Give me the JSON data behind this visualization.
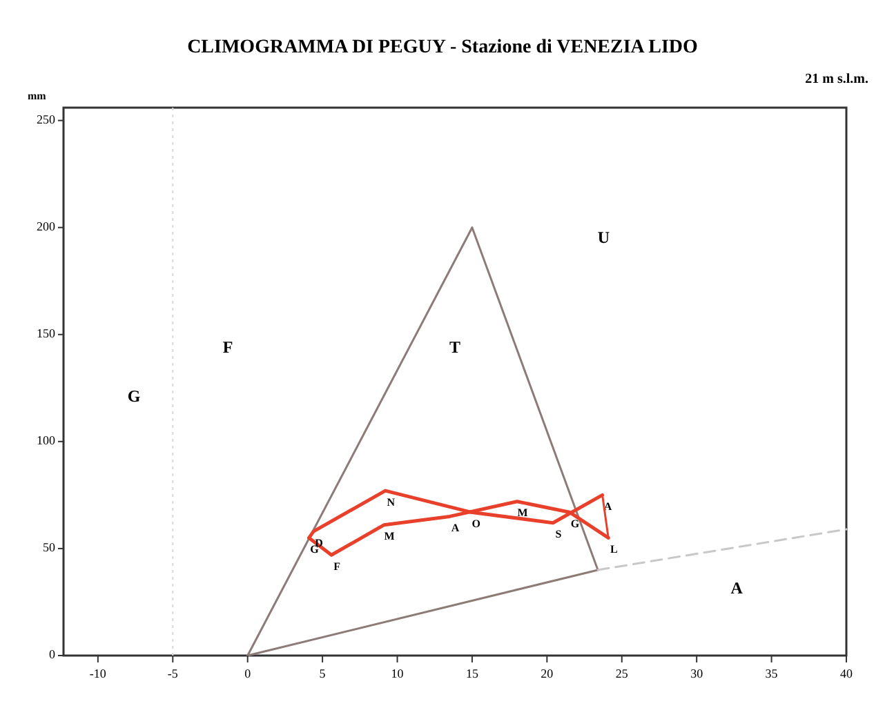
{
  "chart_data": {
    "type": "line",
    "title": "CLIMOGRAMMA DI PEGUY - Stazione di VENEZIA LIDO",
    "subtitle": "21 m s.l.m.",
    "ylabel": "mm",
    "xlim": [
      -12.3,
      40
    ],
    "ylim": [
      0,
      256
    ],
    "xticks": [
      -10,
      -5,
      0,
      5,
      10,
      15,
      20,
      25,
      30,
      35,
      40
    ],
    "yticks": [
      0,
      50,
      100,
      150,
      200,
      250
    ],
    "grid": false,
    "marker": "none",
    "series": [
      {
        "color": "#8c7b77",
        "x": [
          0,
          15,
          23.4
        ],
        "values": [
          0,
          200,
          40
        ],
        "line_style": "solid"
      },
      {
        "color": "#8c7b77",
        "x": [
          0,
          23.4
        ],
        "values": [
          0,
          40
        ],
        "line_style": "solid"
      },
      {
        "color": "#c8c8c8",
        "x": [
          23.4,
          40
        ],
        "values": [
          40,
          59
        ],
        "line_style": "dashed"
      },
      {
        "color": "#e8402a",
        "x": [
          4.1,
          5.6,
          9.1,
          13.5,
          18.0,
          21.5,
          24.1
        ],
        "values": [
          55,
          47,
          61,
          65,
          72,
          67,
          55
        ],
        "value_labels": [
          "G",
          "F",
          "M",
          "A",
          "M",
          "G",
          "L"
        ],
        "line_style": "solid"
      },
      {
        "color": "#e8402a",
        "x": [
          4.1,
          4.4,
          9.2,
          14.9,
          20.4,
          23.7
        ],
        "values": [
          55,
          58,
          77,
          67,
          62,
          75
        ],
        "value_labels": [
          null,
          "D",
          "N",
          "O",
          "S",
          "A"
        ],
        "line_style": "solid"
      },
      {
        "color": "#e8402a",
        "x": [
          23.7,
          24.1
        ],
        "values": [
          75,
          55
        ],
        "line_style": "solid"
      }
    ],
    "ref_lines": [
      {
        "axis": "x",
        "value": -5,
        "label": null,
        "color": "#d8d8d8",
        "line_style": "dotted"
      }
    ],
    "annotations": [
      "G",
      "F",
      "T",
      "U",
      "A"
    ]
  }
}
